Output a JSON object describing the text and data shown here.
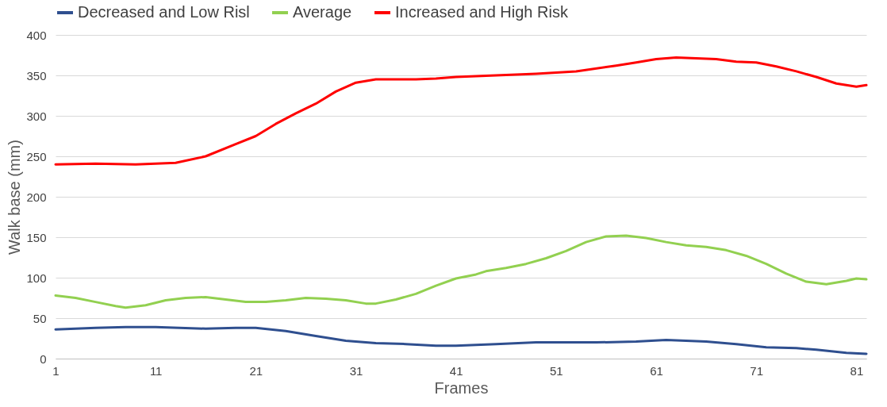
{
  "chart_data": {
    "type": "line",
    "xlabel": "Frames",
    "ylabel": "Walk base (mm)",
    "xlim": [
      1,
      82
    ],
    "xticks": [
      1,
      11,
      21,
      31,
      41,
      51,
      61,
      71,
      81
    ],
    "ylim": [
      0,
      400
    ],
    "yticks": [
      0,
      50,
      100,
      150,
      200,
      250,
      300,
      350,
      400
    ],
    "grid": "y",
    "legend": "top",
    "marker": "none",
    "line_style": "solid",
    "series": [
      {
        "name": "Decreased and Low Risl",
        "color": "#2f4f8f",
        "x": [
          1,
          3,
          5,
          8,
          11,
          16,
          19,
          21,
          24,
          27,
          30,
          33,
          36,
          39,
          41,
          45,
          49,
          51,
          55,
          59,
          62,
          66,
          69,
          72,
          75,
          77,
          80,
          82
        ],
        "values": [
          36,
          37,
          38,
          39,
          39,
          37,
          38,
          38,
          34,
          28,
          22,
          19,
          18,
          16,
          16,
          18,
          20,
          20,
          20,
          21,
          23,
          21,
          18,
          14,
          13,
          11,
          7,
          6
        ]
      },
      {
        "name": "Average",
        "color": "#92d050",
        "x": [
          1,
          3,
          5,
          7,
          8,
          10,
          12,
          14,
          16,
          18,
          20,
          22,
          24,
          26,
          28,
          30,
          32,
          33,
          35,
          37,
          39,
          41,
          43,
          44,
          46,
          48,
          50,
          52,
          54,
          56,
          58,
          60,
          62,
          64,
          66,
          68,
          70,
          72,
          74,
          76,
          78,
          80,
          81,
          82
        ],
        "values": [
          78,
          75,
          70,
          65,
          63,
          66,
          72,
          75,
          76,
          73,
          70,
          70,
          72,
          75,
          74,
          72,
          68,
          68,
          73,
          80,
          90,
          99,
          104,
          108,
          112,
          117,
          124,
          133,
          144,
          151,
          152,
          149,
          144,
          140,
          138,
          134,
          127,
          117,
          105,
          95,
          92,
          96,
          99,
          98
        ]
      },
      {
        "name": "Increased and High Risk",
        "color": "#ff0000",
        "x": [
          1,
          5,
          9,
          13,
          16,
          19,
          21,
          23,
          25,
          27,
          29,
          31,
          33,
          35,
          37,
          39,
          41,
          45,
          49,
          53,
          57,
          59,
          61,
          63,
          65,
          67,
          69,
          71,
          73,
          75,
          77,
          79,
          81,
          82
        ],
        "values": [
          240,
          241,
          240,
          242,
          250,
          265,
          275,
          290,
          303,
          315,
          330,
          341,
          345,
          345,
          345,
          346,
          348,
          350,
          352,
          355,
          362,
          366,
          370,
          372,
          371,
          370,
          367,
          366,
          361,
          355,
          348,
          340,
          336,
          338
        ]
      }
    ]
  }
}
